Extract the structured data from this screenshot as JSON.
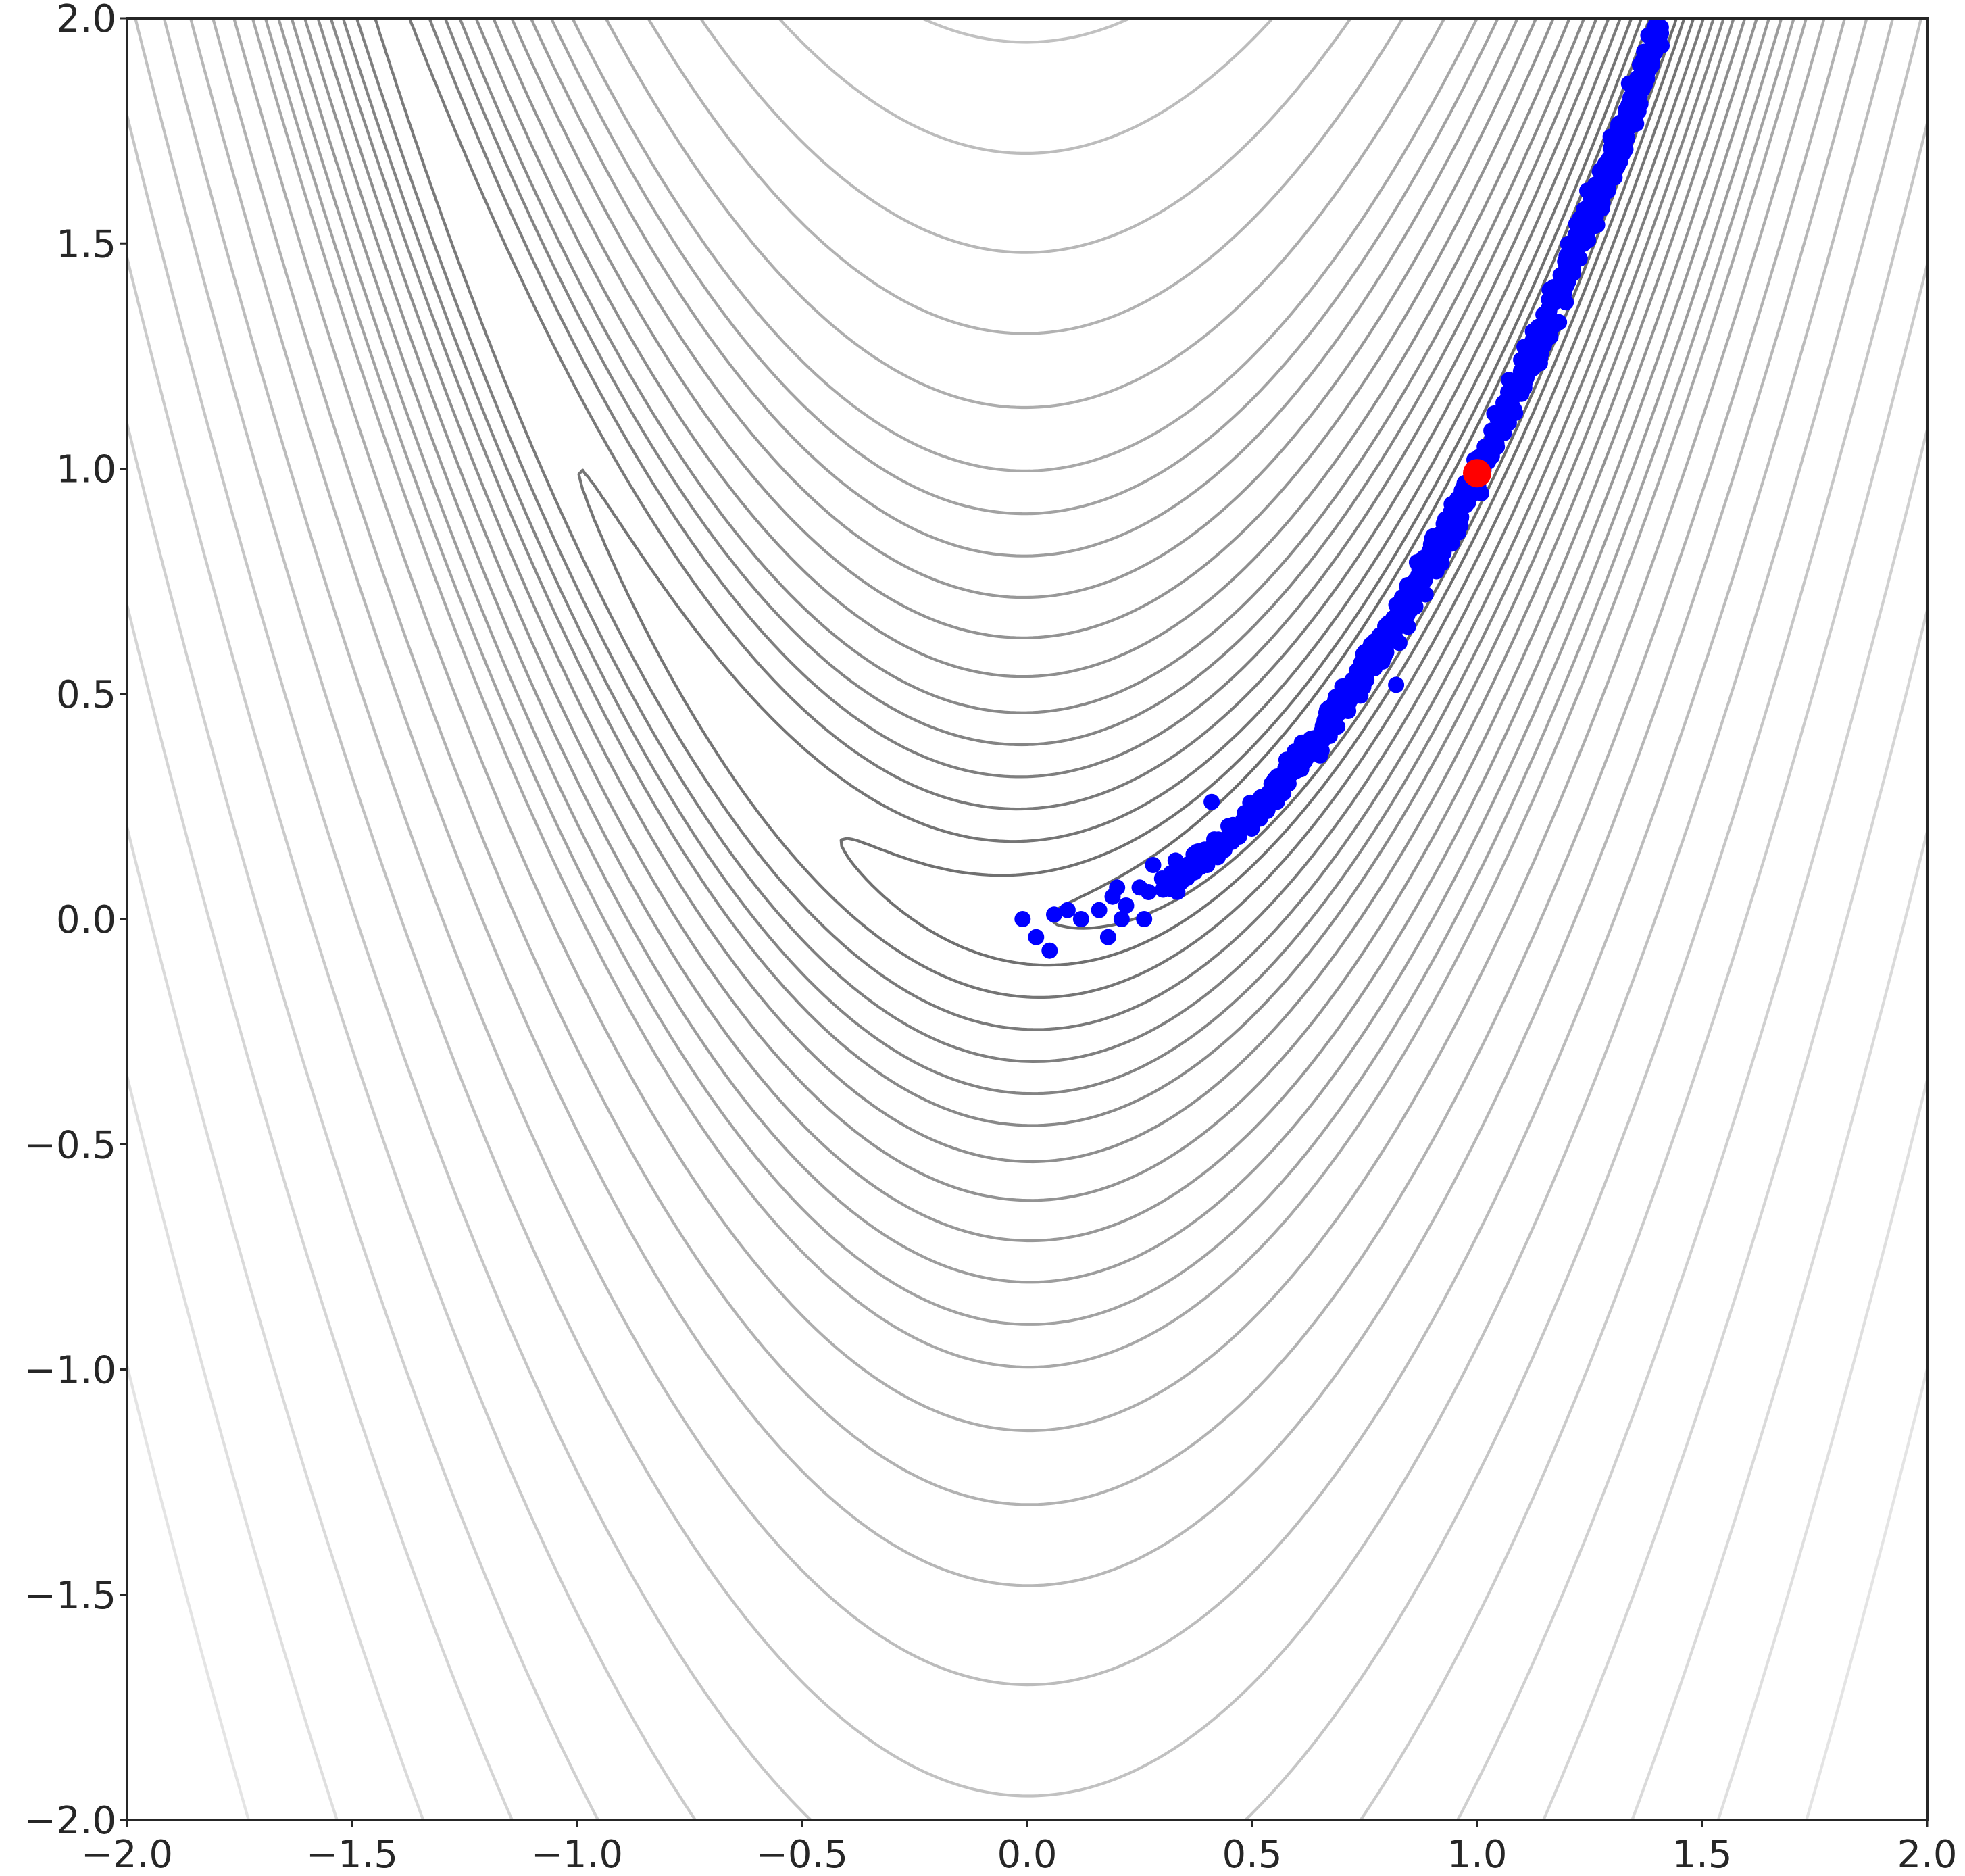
{
  "chart_data": {
    "type": "scatter",
    "title": "",
    "xlabel": "",
    "ylabel": "",
    "xlim": [
      -2.0,
      2.0
    ],
    "ylim": [
      -2.0,
      2.0
    ],
    "grid": false,
    "legend": "none",
    "x_ticks": [
      -2.0,
      -1.5,
      -1.0,
      -0.5,
      0.0,
      0.5,
      1.0,
      1.5,
      2.0
    ],
    "x_tick_labels": [
      "−2.0",
      "−1.5",
      "−1.0",
      "−0.5",
      "0.0",
      "0.5",
      "1.0",
      "1.5",
      "2.0"
    ],
    "y_ticks": [
      2.0,
      1.5,
      1.0,
      0.5,
      0.0,
      -0.5,
      -1.0,
      -1.5,
      -2.0
    ],
    "y_tick_labels": [
      "2.0",
      "1.5",
      "1.0",
      "0.5",
      "0.0",
      "−0.5",
      "−1.0",
      "−1.5",
      "−2.0"
    ],
    "background": {
      "type": "contour",
      "function": "rosenbrock",
      "a": 1,
      "b": 100,
      "levels": [
        0.12,
        0.9,
        2,
        4,
        7,
        11,
        16,
        22,
        30,
        40,
        52,
        66,
        82,
        100,
        130,
        170,
        220,
        290,
        380,
        500,
        650,
        850,
        1100,
        1450,
        1900,
        2500
      ],
      "color_dark": "#666666",
      "color_light": "#e4e4e4"
    },
    "series": [
      {
        "type": "scatter",
        "color": "#0000ff",
        "n_points": 950,
        "points": [
          [
            -0.01,
            0.0
          ],
          [
            0.02,
            -0.04
          ],
          [
            0.05,
            -0.07
          ],
          [
            0.06,
            0.01
          ],
          [
            0.09,
            0.02
          ],
          [
            0.12,
            0.0
          ],
          [
            0.16,
            0.02
          ],
          [
            0.18,
            -0.04
          ],
          [
            0.19,
            0.05
          ],
          [
            0.2,
            0.07
          ],
          [
            0.21,
            0.0
          ],
          [
            0.22,
            0.03
          ],
          [
            0.25,
            0.07
          ],
          [
            0.26,
            0.0
          ],
          [
            0.27,
            0.06
          ],
          [
            0.28,
            0.12
          ],
          [
            0.3,
            0.09
          ],
          [
            0.32,
            0.1
          ],
          [
            0.33,
            0.13
          ],
          [
            0.36,
            0.1
          ],
          [
            0.38,
            0.15
          ],
          [
            0.4,
            0.12
          ],
          [
            0.41,
            0.26
          ],
          [
            0.43,
            0.16
          ],
          [
            0.45,
            0.2
          ],
          [
            0.48,
            0.22
          ],
          [
            0.5,
            0.25
          ],
          [
            0.52,
            0.27
          ],
          [
            0.55,
            0.31
          ],
          [
            0.57,
            0.3
          ],
          [
            0.6,
            0.35
          ],
          [
            0.63,
            0.4
          ],
          [
            0.66,
            0.43
          ],
          [
            0.7,
            0.48
          ],
          [
            0.74,
            0.55
          ],
          [
            0.78,
            0.6
          ],
          [
            0.8,
            0.65
          ],
          [
            0.82,
            0.52
          ],
          [
            0.84,
            0.7
          ],
          [
            0.88,
            0.77
          ],
          [
            0.92,
            0.85
          ],
          [
            0.95,
            0.9
          ],
          [
            0.98,
            0.96
          ],
          [
            1.02,
            1.04
          ],
          [
            1.06,
            1.12
          ],
          [
            1.1,
            1.2
          ],
          [
            1.13,
            1.28
          ],
          [
            1.16,
            1.35
          ],
          [
            1.2,
            1.44
          ],
          [
            1.23,
            1.52
          ],
          [
            1.26,
            1.59
          ],
          [
            1.29,
            1.66
          ],
          [
            1.31,
            1.72
          ],
          [
            1.33,
            1.78
          ],
          [
            1.35,
            1.84
          ],
          [
            1.37,
            1.9
          ],
          [
            1.39,
            1.95
          ],
          [
            1.4,
            1.97
          ]
        ]
      },
      {
        "type": "scatter",
        "name": "",
        "color": "#ff0000",
        "points": [
          [
            1.0,
            0.99
          ]
        ]
      }
    ]
  }
}
